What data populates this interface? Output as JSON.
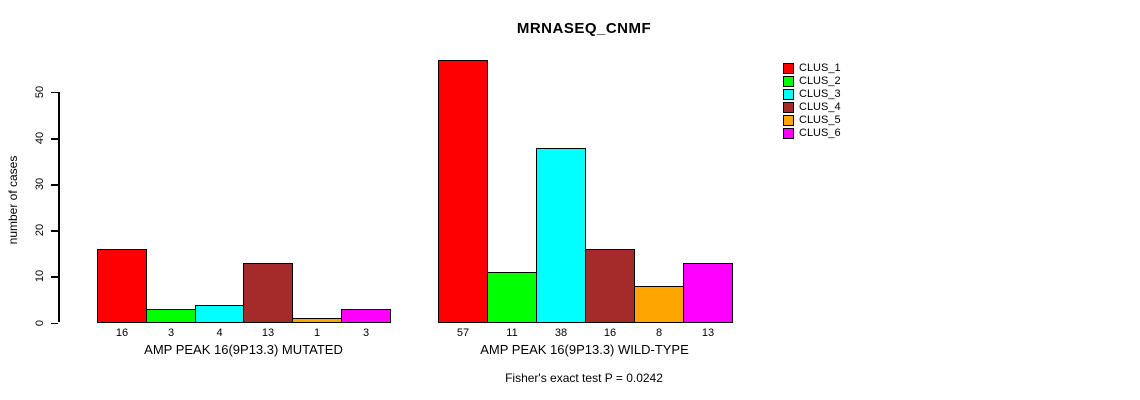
{
  "chart_data": {
    "type": "bar",
    "title": "MRNASEQ_CNMF",
    "ylabel": "number of cases",
    "xlabel": "",
    "annotation": "Fisher's exact test P = 0.0242",
    "categories": [
      "AMP PEAK 16(9P13.3) MUTATED",
      "AMP PEAK 16(9P13.3) WILD-TYPE"
    ],
    "series": [
      {
        "name": "CLUS_1",
        "color": "#ff0000",
        "values": [
          16,
          57
        ]
      },
      {
        "name": "CLUS_2",
        "color": "#00ff00",
        "values": [
          3,
          11
        ]
      },
      {
        "name": "CLUS_3",
        "color": "#00ffff",
        "values": [
          4,
          38
        ]
      },
      {
        "name": "CLUS_4",
        "color": "#a52a2a",
        "values": [
          13,
          16
        ]
      },
      {
        "name": "CLUS_5",
        "color": "#ffa500",
        "values": [
          1,
          8
        ]
      },
      {
        "name": "CLUS_6",
        "color": "#ff00ff",
        "values": [
          3,
          13
        ]
      }
    ],
    "yticks": [
      0,
      10,
      20,
      30,
      40,
      50
    ],
    "ylim": [
      0,
      57
    ],
    "bar_value_labels_shown": true,
    "grid": false,
    "legend_position": "right"
  }
}
